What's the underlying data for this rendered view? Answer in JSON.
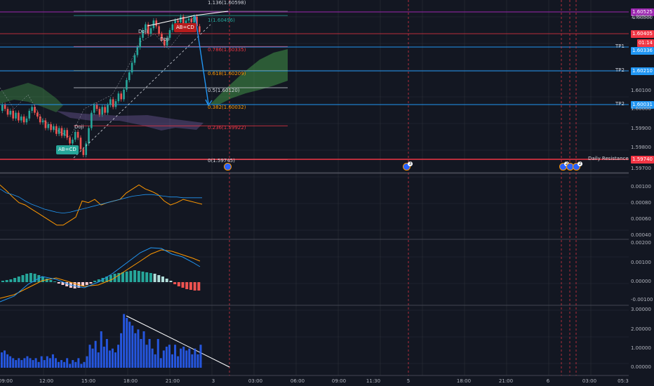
{
  "price_tags": [
    {
      "text": "1.60525",
      "color": "#9c27b0"
    },
    {
      "text": "1.60500",
      "color": "none"
    },
    {
      "text": "1.60405",
      "color": "#f23645"
    },
    {
      "text": "01:14",
      "color": "#f23645"
    },
    {
      "text": "1.60336",
      "color": "#2196f3"
    },
    {
      "text": "1.60210",
      "color": "#2196f3"
    },
    {
      "text": "1.60031",
      "color": "#2196f3"
    },
    {
      "text": "1.59740",
      "color": "#f23645"
    }
  ],
  "price_axis": [
    "1.60500",
    "1.60100",
    "1.60000",
    "1.59900",
    "1.59800",
    "1.59700"
  ],
  "line_labels": {
    "tp1": "TP1",
    "tp2a": "TP2",
    "tp2b": "TP2",
    "resistance": "Daily Resistance"
  },
  "fib_labels": [
    {
      "text": "1.136(1.60598)",
      "color": "#d1d4dc"
    },
    {
      "text": "1(1.60496)",
      "color": "#26a69a"
    },
    {
      "text": "0.786(1.60335)",
      "color": "#f23645"
    },
    {
      "text": "0.618(1.60209)",
      "color": "#ff9800"
    },
    {
      "text": "0.5(1.60120)",
      "color": "#d1d4dc"
    },
    {
      "text": "0.382(1.60032)",
      "color": "#ff9800"
    },
    {
      "text": "0.236(1.59922)",
      "color": "#f23645"
    },
    {
      "text": "0(1.59745)",
      "color": "#d1d4dc"
    }
  ],
  "patterns": [
    {
      "text": "AB=CD",
      "color": "#b71c1c"
    },
    {
      "text": "AB=CD",
      "color": "#26a69a"
    }
  ],
  "doji_labels": [
    "Doji",
    "Doji",
    "Doji"
  ],
  "events": [
    "",
    "3",
    "2",
    "",
    "2"
  ],
  "osc_axis": [
    "0.00100",
    "0.00080",
    "0.00060",
    "0.00040"
  ],
  "macd_axis": [
    "0.00200",
    "0.00100",
    "0.00000",
    "-0.00100"
  ],
  "vol_axis": [
    "3.00000",
    "2.00000",
    "1.00000",
    "0.00000"
  ],
  "time_axis": [
    "09:00",
    "12:00",
    "15:00",
    "18:00",
    "21:00",
    "3",
    "03:00",
    "06:00",
    "09:00",
    "11:30",
    "5",
    "18:00",
    "21:00",
    "6",
    "03:00",
    "05:3"
  ],
  "colors": {
    "bg": "#131722",
    "up": "#26a69a",
    "down": "#ef5350",
    "grid": "#2a2e39"
  }
}
